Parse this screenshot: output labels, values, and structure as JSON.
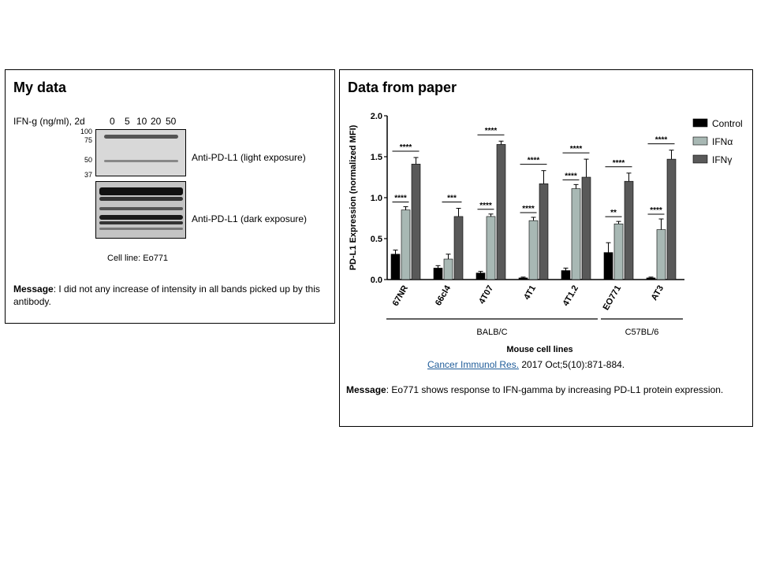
{
  "left": {
    "title": "My data",
    "treatment_label": "IFN-g (ng/ml), 2d",
    "doses": [
      "0",
      "5",
      "10",
      "20",
      "50"
    ],
    "mw_markers": [
      "100",
      "75",
      "50",
      "37"
    ],
    "light_label": "Anti-PD-L1 (light exposure)",
    "dark_label": "Anti-PD-L1 (dark exposure)",
    "cell_line_label": "Cell line: Eo771",
    "message_label": "Message",
    "message_text": ": I did not any increase of intensity in all bands picked up by this antibody."
  },
  "right": {
    "title": "Data from paper",
    "citation_link": "Cancer Immunol Res.",
    "citation_rest": " 2017 Oct;5(10):871-884.",
    "message_label": "Message",
    "message_text": ": Eo771 shows response to IFN-gamma  by increasing PD-L1 protein expression."
  },
  "chart_data": {
    "type": "bar",
    "ylabel": "PD-L1 Expression (normalized MFI)",
    "xlabel": "Mouse cell lines",
    "ylim": [
      0,
      2.0
    ],
    "yticks": [
      "0.0",
      "0.5",
      "1.0",
      "1.5",
      "2.0"
    ],
    "categories": [
      "67NR",
      "66cl4",
      "4T07",
      "4T1",
      "4T1.2",
      "EO771",
      "AT3"
    ],
    "groups": [
      {
        "label": "BALB/C",
        "members": [
          "67NR",
          "66cl4",
          "4T07",
          "4T1",
          "4T1.2"
        ]
      },
      {
        "label": "C57BL/6",
        "members": [
          "EO771",
          "AT3"
        ]
      }
    ],
    "legend_position": "right",
    "series": [
      {
        "name": "Control",
        "color": "#000000",
        "values": [
          0.31,
          0.14,
          0.08,
          0.02,
          0.11,
          0.33,
          0.02
        ],
        "errors": [
          0.05,
          0.03,
          0.02,
          0.01,
          0.03,
          0.12,
          0.01
        ]
      },
      {
        "name": "IFNα",
        "color": "#a8b8b4",
        "values": [
          0.85,
          0.25,
          0.77,
          0.72,
          1.11,
          0.68,
          0.61
        ],
        "errors": [
          0.04,
          0.06,
          0.03,
          0.04,
          0.05,
          0.03,
          0.13
        ]
      },
      {
        "name": "IFNγ",
        "color": "#595959",
        "values": [
          1.41,
          0.77,
          1.65,
          1.17,
          1.25,
          1.2,
          1.47
        ],
        "errors": [
          0.08,
          0.1,
          0.04,
          0.16,
          0.22,
          0.1,
          0.11
        ]
      }
    ],
    "significance": [
      {
        "lower": "****",
        "upper": "****"
      },
      {
        "lower": "",
        "upper": "***"
      },
      {
        "lower": "****",
        "upper": "****"
      },
      {
        "lower": "****",
        "upper": "****"
      },
      {
        "lower": "****",
        "upper": "****"
      },
      {
        "lower": "**",
        "upper": "****"
      },
      {
        "lower": "****",
        "upper": "****"
      }
    ]
  }
}
